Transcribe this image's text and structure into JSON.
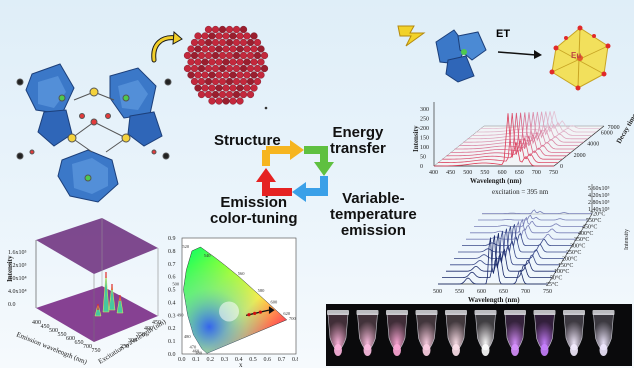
{
  "central_cycle": {
    "structure": "Structure",
    "energy_transfer": "Energy\ntransfer",
    "variable_temperature": "Variable-\ntemperature\nemission",
    "emission_color_tuning": "Emission\ncolor-tuning"
  },
  "et_panel": {
    "et_label": "ET",
    "eu_label": "Eu"
  },
  "decay_plot": {
    "y_label": "Intensity",
    "x_label": "Wavelength (nm)",
    "z_label": "Decay time (µs)",
    "x_ticks": [
      "400",
      "450",
      "500",
      "550",
      "600",
      "650",
      "700",
      "750"
    ],
    "y_ticks": [
      "0",
      "50",
      "100",
      "150",
      "200",
      "250",
      "300"
    ],
    "z_ticks": [
      "0",
      "1000",
      "2000",
      "3000",
      "4000",
      "5000",
      "6000",
      "7000"
    ]
  },
  "temp_plot": {
    "excitation": "excitation = 395 nm",
    "x_label": "Wavelength (nm)",
    "y_label": "Intensity",
    "x_ticks": [
      "500",
      "550",
      "600",
      "650",
      "700",
      "750"
    ],
    "temps": [
      "25°C",
      "50°C",
      "100°C",
      "150°C",
      "200°C",
      "250°C",
      "300°C",
      "350°C",
      "400°C",
      "450°C",
      "550°C",
      "720°C"
    ],
    "intensity_ticks": [
      "5.60x10⁵",
      "4.20x10⁵",
      "2.80x10⁵",
      "1.40x10⁵"
    ]
  },
  "surface_plot": {
    "z_label": "Intensity",
    "x_label": "Emission wavelength (nm)",
    "y_label": "Excitation wavelength (nm)",
    "z_ticks": [
      "1.6x10⁵",
      "1.2x10⁵",
      "8.0x10⁴",
      "4.0x10⁴",
      "0.0"
    ],
    "x_ticks": [
      "400",
      "450",
      "500",
      "550",
      "600",
      "650",
      "700",
      "750"
    ],
    "y_ticks": [
      "250",
      "300",
      "350",
      "400",
      "450"
    ]
  },
  "cie_plot": {
    "x_label": "x",
    "y_label": "y",
    "x_ticks": [
      "0.0",
      "0.1",
      "0.2",
      "0.3",
      "0.4",
      "0.5",
      "0.6",
      "0.7",
      "0.8"
    ],
    "y_ticks": [
      "0.0",
      "0.1",
      "0.2",
      "0.3",
      "0.4",
      "0.5",
      "0.6",
      "0.7",
      "0.8",
      "0.9"
    ],
    "wavelength_marks": [
      "520",
      "540",
      "560",
      "580",
      "600",
      "620",
      "700",
      "500",
      "490",
      "480",
      "470",
      "460",
      "380"
    ]
  },
  "colors": {
    "polyhedra_blue": "#3f7fd0",
    "arrow_red": "#e52222",
    "arrow_green": "#5fc040",
    "arrow_yellow": "#f6b520",
    "arrow_blue": "#3aa0e8"
  }
}
